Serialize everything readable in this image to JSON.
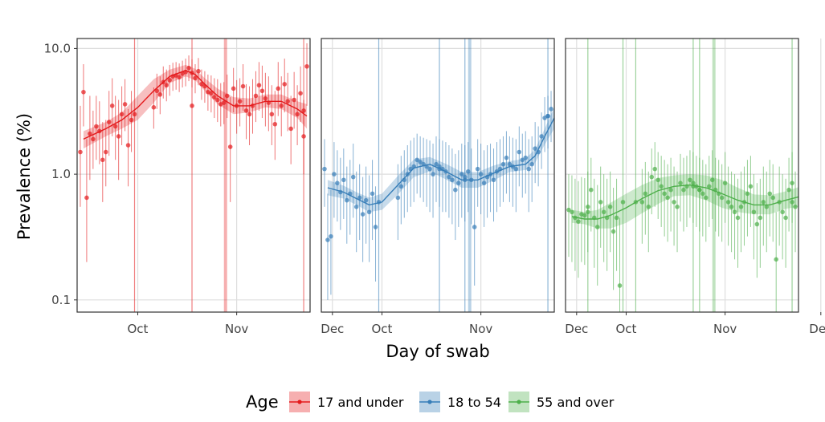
{
  "chart_data": {
    "type": "line",
    "xlabel": "Day of swab",
    "ylabel": "Prevalence (%)",
    "yscale": "log10",
    "ylim": [
      0.08,
      12
    ],
    "yticks": [
      0.1,
      1.0,
      10.0
    ],
    "ytick_labels": [
      "0.1",
      "1.0",
      "10.0"
    ],
    "xlim": [
      -19,
      54
    ],
    "xticks": [
      0,
      31,
      61
    ],
    "xtick_labels": [
      "Oct",
      "Nov",
      "Dec"
    ],
    "x_unit": "days since 1 Oct",
    "grid": true,
    "legend": {
      "title": "Age",
      "position": "bottom",
      "entries": [
        "17 and under",
        "18 to 54",
        "55 and over"
      ]
    },
    "panels": [
      {
        "name": "17 and under",
        "color": "#E41A1C",
        "curve": {
          "x": [
            -17,
            -10,
            -5,
            0,
            5,
            10,
            15,
            18,
            21,
            25,
            30,
            35,
            40,
            45,
            50,
            53
          ],
          "y": [
            1.9,
            2.3,
            2.7,
            3.4,
            4.6,
            6.0,
            6.7,
            6.2,
            5.2,
            4.2,
            3.5,
            3.5,
            3.8,
            3.8,
            3.3,
            2.9
          ],
          "lower": [
            1.6,
            2.0,
            2.3,
            2.7,
            3.7,
            5.3,
            6.0,
            5.6,
            4.6,
            3.6,
            3.0,
            3.1,
            3.4,
            3.3,
            2.8,
            2.3
          ],
          "upper": [
            2.2,
            2.6,
            3.1,
            4.2,
            5.7,
            6.8,
            7.4,
            6.9,
            5.8,
            4.8,
            4.1,
            4.0,
            4.3,
            4.3,
            3.8,
            3.6
          ]
        },
        "points": {
          "x": [
            -18,
            -17,
            -16,
            -15,
            -14,
            -13,
            -12,
            -11,
            -10,
            -9,
            -8,
            -7,
            -6,
            -5,
            -4,
            -3,
            -2,
            5,
            6,
            7,
            8,
            9,
            10,
            11,
            12,
            13,
            14,
            15,
            16,
            17,
            18,
            19,
            20,
            21,
            22,
            23,
            24,
            25,
            26,
            27,
            28,
            29,
            30,
            31,
            32,
            33,
            34,
            35,
            36,
            37,
            38,
            39,
            40,
            41,
            42,
            43,
            44,
            45,
            46,
            47,
            48,
            49,
            50,
            51,
            52,
            53
          ],
          "y": [
            1.5,
            4.5,
            0.65,
            2.1,
            1.9,
            2.4,
            2.2,
            1.3,
            1.5,
            2.6,
            3.5,
            2.4,
            2.0,
            3.0,
            3.6,
            1.7,
            2.7,
            3.4,
            4.6,
            4.3,
            5.4,
            5.1,
            5.6,
            6.0,
            6.1,
            5.9,
            6.3,
            6.5,
            7.0,
            6.4,
            5.8,
            6.6,
            5.2,
            5.0,
            4.5,
            4.4,
            4.1,
            3.9,
            3.6,
            3.7,
            4.2,
            1.65,
            4.8,
            3.5,
            3.8,
            5.0,
            3.2,
            3.0,
            3.5,
            4.2,
            5.1,
            4.6,
            4.0,
            3.7,
            3.0,
            2.5,
            4.8,
            3.5,
            5.2,
            3.8,
            2.3,
            3.9,
            3.0,
            4.4,
            2.0,
            7.2
          ],
          "lower": [
            0.55,
            2.4,
            0.2,
            0.9,
            1.1,
            1.3,
            1.2,
            0.6,
            0.8,
            1.4,
            2.0,
            1.3,
            0.9,
            1.7,
            2.2,
            0.8,
            1.5,
            2.3,
            3.3,
            3.0,
            4.0,
            3.8,
            4.2,
            4.6,
            4.7,
            4.5,
            4.9,
            5.0,
            5.5,
            4.9,
            4.4,
            5.1,
            3.9,
            3.7,
            3.2,
            3.1,
            2.8,
            2.6,
            2.4,
            2.5,
            2.8,
            0.6,
            3.1,
            2.1,
            2.4,
            3.2,
            1.9,
            1.7,
            2.1,
            2.6,
            3.2,
            2.8,
            2.4,
            2.2,
            1.7,
            1.3,
            2.9,
            2.0,
            3.1,
            2.2,
            1.2,
            2.3,
            1.7,
            2.6,
            1.0,
            3.5
          ],
          "upper": [
            3.5,
            7.5,
            1.9,
            4.2,
            3.2,
            4.2,
            3.8,
            2.6,
            2.7,
            4.6,
            5.8,
            4.2,
            3.9,
            5.0,
            5.7,
            3.3,
            4.6,
            4.9,
            6.3,
            6.0,
            7.2,
            6.8,
            7.4,
            7.7,
            7.8,
            7.6,
            8.0,
            8.3,
            8.8,
            8.2,
            7.5,
            8.4,
            6.8,
            6.6,
            6.2,
            6.1,
            5.8,
            5.7,
            5.3,
            5.4,
            6.2,
            4.1,
            7.0,
            5.6,
            5.8,
            7.5,
            5.2,
            5.0,
            5.7,
            6.6,
            7.8,
            7.3,
            6.4,
            6.0,
            5.1,
            4.6,
            7.8,
            6.0,
            8.3,
            6.4,
            4.2,
            6.5,
            5.1,
            7.2,
            3.9,
            11.0
          ],
          "overflow_x": [
            -1,
            17,
            52
          ],
          "overflow_y": [
            3.0,
            3.5,
            3.2
          ]
        },
        "gap_bands": [
          [
            27,
            28
          ]
        ]
      },
      {
        "name": "18 to 54",
        "color": "#377EB8",
        "curve": {
          "x": [
            -17,
            -12,
            -8,
            -4,
            0,
            5,
            10,
            15,
            20,
            25,
            30,
            35,
            40,
            45,
            48,
            51,
            54
          ],
          "y": [
            0.78,
            0.72,
            0.64,
            0.57,
            0.6,
            0.82,
            1.12,
            1.2,
            1.05,
            0.9,
            0.9,
            1.02,
            1.15,
            1.2,
            1.4,
            2.0,
            2.8
          ],
          "lower": [
            0.68,
            0.64,
            0.57,
            0.5,
            0.52,
            0.69,
            0.95,
            1.05,
            0.91,
            0.78,
            0.78,
            0.89,
            1.04,
            1.08,
            1.23,
            1.72,
            2.3
          ],
          "upper": [
            0.9,
            0.81,
            0.72,
            0.65,
            0.7,
            0.97,
            1.31,
            1.37,
            1.21,
            1.04,
            1.04,
            1.17,
            1.27,
            1.33,
            1.58,
            2.3,
            3.4
          ]
        },
        "points": {
          "x": [
            -18,
            -17,
            -16,
            -15,
            -14,
            -13,
            -12,
            -11,
            -10,
            -9,
            -8,
            -7,
            -6,
            -5,
            -4,
            -3,
            -2,
            5,
            6,
            7,
            8,
            9,
            10,
            11,
            12,
            13,
            14,
            15,
            16,
            17,
            18,
            19,
            20,
            21,
            22,
            23,
            24,
            25,
            26,
            27,
            28,
            29,
            30,
            31,
            32,
            33,
            34,
            35,
            36,
            37,
            38,
            39,
            40,
            41,
            42,
            43,
            44,
            45,
            46,
            47,
            48,
            49,
            50,
            51,
            52,
            53
          ],
          "y": [
            1.1,
            0.3,
            0.32,
            1.0,
            0.85,
            0.72,
            0.9,
            0.62,
            0.7,
            0.95,
            0.55,
            0.65,
            0.48,
            0.62,
            0.5,
            0.7,
            0.38,
            0.65,
            0.8,
            0.9,
            1.0,
            1.1,
            1.15,
            1.3,
            1.25,
            1.2,
            1.15,
            1.1,
            1.0,
            1.2,
            1.15,
            1.1,
            1.05,
            0.95,
            0.9,
            0.75,
            0.85,
            1.0,
            0.95,
            1.05,
            0.9,
            0.38,
            1.1,
            1.0,
            0.85,
            0.95,
            1.0,
            0.9,
            1.05,
            1.1,
            1.2,
            1.35,
            1.2,
            1.15,
            1.1,
            1.5,
            1.3,
            1.35,
            1.1,
            1.2,
            1.6,
            1.5,
            2.0,
            2.8,
            2.9,
            3.3
          ],
          "lower": [
            0.55,
            0.1,
            0.11,
            0.45,
            0.42,
            0.36,
            0.44,
            0.28,
            0.33,
            0.45,
            0.24,
            0.3,
            0.2,
            0.28,
            0.2,
            0.3,
            0.14,
            0.3,
            0.4,
            0.45,
            0.5,
            0.55,
            0.6,
            0.7,
            0.65,
            0.6,
            0.55,
            0.5,
            0.45,
            0.6,
            0.55,
            0.5,
            0.5,
            0.45,
            0.4,
            0.3,
            0.38,
            0.45,
            0.42,
            0.5,
            0.4,
            0.13,
            0.55,
            0.48,
            0.38,
            0.45,
            0.5,
            0.42,
            0.5,
            0.55,
            0.6,
            0.7,
            0.6,
            0.55,
            0.5,
            0.8,
            0.65,
            0.7,
            0.5,
            0.6,
            0.85,
            0.8,
            1.1,
            1.5,
            1.6,
            1.8
          ],
          "upper": [
            1.9,
            0.7,
            0.75,
            1.8,
            1.55,
            1.35,
            1.6,
            1.15,
            1.3,
            1.75,
            1.05,
            1.2,
            0.95,
            1.15,
            0.98,
            1.3,
            0.8,
            1.2,
            1.4,
            1.55,
            1.7,
            1.85,
            1.95,
            2.1,
            2.0,
            1.95,
            1.9,
            1.85,
            1.75,
            2.0,
            1.9,
            1.85,
            1.8,
            1.7,
            1.6,
            1.45,
            1.55,
            1.75,
            1.7,
            1.8,
            1.6,
            0.9,
            1.9,
            1.75,
            1.55,
            1.7,
            1.75,
            1.6,
            1.8,
            1.9,
            2.0,
            2.2,
            2.0,
            1.95,
            1.9,
            2.4,
            2.1,
            2.2,
            1.9,
            2.0,
            2.6,
            2.4,
            3.1,
            4.1,
            4.2,
            4.6
          ],
          "overflow_x": [
            -1,
            18,
            26,
            52
          ],
          "overflow_y": [
            0.6,
            1.1,
            0.9,
            2.9
          ]
        },
        "gap_bands": [
          [
            27,
            28
          ]
        ]
      },
      {
        "name": "55 and over",
        "color": "#4DAF4A",
        "curve": {
          "x": [
            -17,
            -13,
            -9,
            -5,
            0,
            5,
            10,
            15,
            20,
            25,
            30,
            35,
            40,
            45,
            50,
            54
          ],
          "y": [
            0.46,
            0.44,
            0.44,
            0.47,
            0.54,
            0.64,
            0.74,
            0.8,
            0.82,
            0.78,
            0.7,
            0.62,
            0.57,
            0.57,
            0.62,
            0.66
          ],
          "lower": [
            0.41,
            0.4,
            0.37,
            0.37,
            0.41,
            0.49,
            0.58,
            0.67,
            0.68,
            0.62,
            0.54,
            0.5,
            0.48,
            0.48,
            0.53,
            0.55
          ],
          "upper": [
            0.52,
            0.5,
            0.52,
            0.59,
            0.7,
            0.82,
            0.93,
            0.98,
            1.0,
            0.98,
            0.9,
            0.78,
            0.69,
            0.68,
            0.73,
            0.79
          ]
        },
        "points": {
          "x": [
            -18,
            -17,
            -16,
            -15,
            -14,
            -13,
            -12,
            -11,
            -10,
            -9,
            -8,
            -7,
            -6,
            -5,
            -4,
            -3,
            -2,
            5,
            6,
            7,
            8,
            9,
            10,
            11,
            12,
            13,
            14,
            15,
            16,
            17,
            18,
            19,
            20,
            21,
            22,
            23,
            24,
            25,
            26,
            27,
            28,
            29,
            30,
            31,
            32,
            33,
            34,
            35,
            36,
            37,
            38,
            39,
            40,
            41,
            42,
            43,
            44,
            45,
            46,
            47,
            48,
            49,
            50,
            51,
            52,
            53
          ],
          "y": [
            0.52,
            0.5,
            0.45,
            0.42,
            0.48,
            0.47,
            0.55,
            0.75,
            0.45,
            0.38,
            0.6,
            0.5,
            0.45,
            0.55,
            0.35,
            0.45,
            0.13,
            0.6,
            0.7,
            0.55,
            0.95,
            1.1,
            0.9,
            0.8,
            0.7,
            0.65,
            0.75,
            0.6,
            0.55,
            0.85,
            0.75,
            0.8,
            0.9,
            0.85,
            0.8,
            0.75,
            0.7,
            0.65,
            0.8,
            0.9,
            0.75,
            0.7,
            0.65,
            0.85,
            0.6,
            0.55,
            0.5,
            0.45,
            0.55,
            0.6,
            0.7,
            0.8,
            0.5,
            0.4,
            0.45,
            0.6,
            0.55,
            0.7,
            0.65,
            0.21,
            0.6,
            0.5,
            0.45,
            0.75,
            0.85,
            0.55
          ],
          "lower": [
            0.22,
            0.2,
            0.17,
            0.15,
            0.2,
            0.19,
            0.24,
            0.35,
            0.18,
            0.13,
            0.26,
            0.2,
            0.17,
            0.24,
            0.12,
            0.17,
            0.05,
            0.28,
            0.33,
            0.24,
            0.48,
            0.55,
            0.44,
            0.38,
            0.32,
            0.29,
            0.35,
            0.27,
            0.24,
            0.42,
            0.35,
            0.38,
            0.45,
            0.41,
            0.38,
            0.35,
            0.32,
            0.29,
            0.38,
            0.44,
            0.35,
            0.32,
            0.29,
            0.41,
            0.27,
            0.24,
            0.21,
            0.18,
            0.24,
            0.27,
            0.32,
            0.38,
            0.21,
            0.15,
            0.18,
            0.27,
            0.24,
            0.32,
            0.29,
            0.07,
            0.27,
            0.21,
            0.18,
            0.35,
            0.41,
            0.24
          ],
          "upper": [
            1.0,
            0.98,
            0.92,
            0.88,
            0.95,
            0.93,
            1.05,
            1.35,
            0.92,
            0.82,
            1.15,
            1.0,
            0.92,
            1.05,
            0.78,
            0.92,
            0.45,
            1.1,
            1.25,
            1.05,
            1.6,
            1.8,
            1.5,
            1.4,
            1.3,
            1.2,
            1.35,
            1.15,
            1.05,
            1.45,
            1.35,
            1.4,
            1.55,
            1.5,
            1.4,
            1.35,
            1.3,
            1.2,
            1.4,
            1.55,
            1.35,
            1.3,
            1.2,
            1.5,
            1.15,
            1.05,
            1.0,
            0.92,
            1.05,
            1.15,
            1.3,
            1.4,
            1.0,
            0.85,
            0.92,
            1.15,
            1.05,
            1.3,
            1.2,
            0.5,
            1.15,
            1.0,
            0.92,
            1.35,
            1.5,
            1.05
          ],
          "overflow_x": [
            -12,
            -1,
            3,
            21,
            23,
            52
          ],
          "overflow_y": [
            0.5,
            0.6,
            0.6,
            0.8,
            0.75,
            0.6
          ]
        },
        "gap_bands": [
          [
            27,
            28
          ]
        ]
      }
    ]
  }
}
